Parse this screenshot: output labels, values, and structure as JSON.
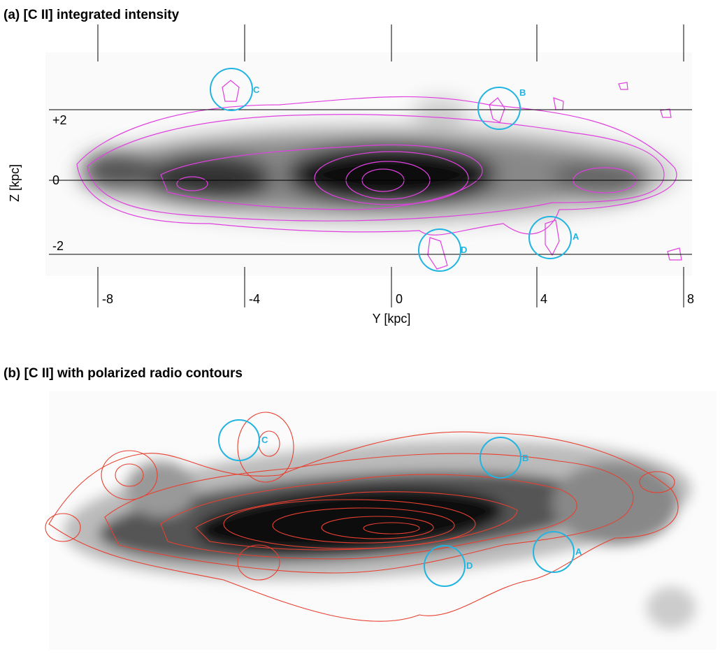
{
  "panels": [
    {
      "title": "(a) [C II] integrated intensity",
      "x_axis": {
        "label": "Y [kpc]",
        "ticks": [
          "-8",
          "-4",
          "0",
          "4",
          "8"
        ]
      },
      "y_axis": {
        "label": "Z [kpc]",
        "ticks": [
          "+2",
          "0",
          "-2"
        ]
      },
      "regions": [
        "C",
        "B",
        "D",
        "A"
      ]
    },
    {
      "title": "(b) [C II] with polarized radio contours",
      "regions": [
        "C",
        "B",
        "D",
        "A"
      ]
    }
  ]
}
